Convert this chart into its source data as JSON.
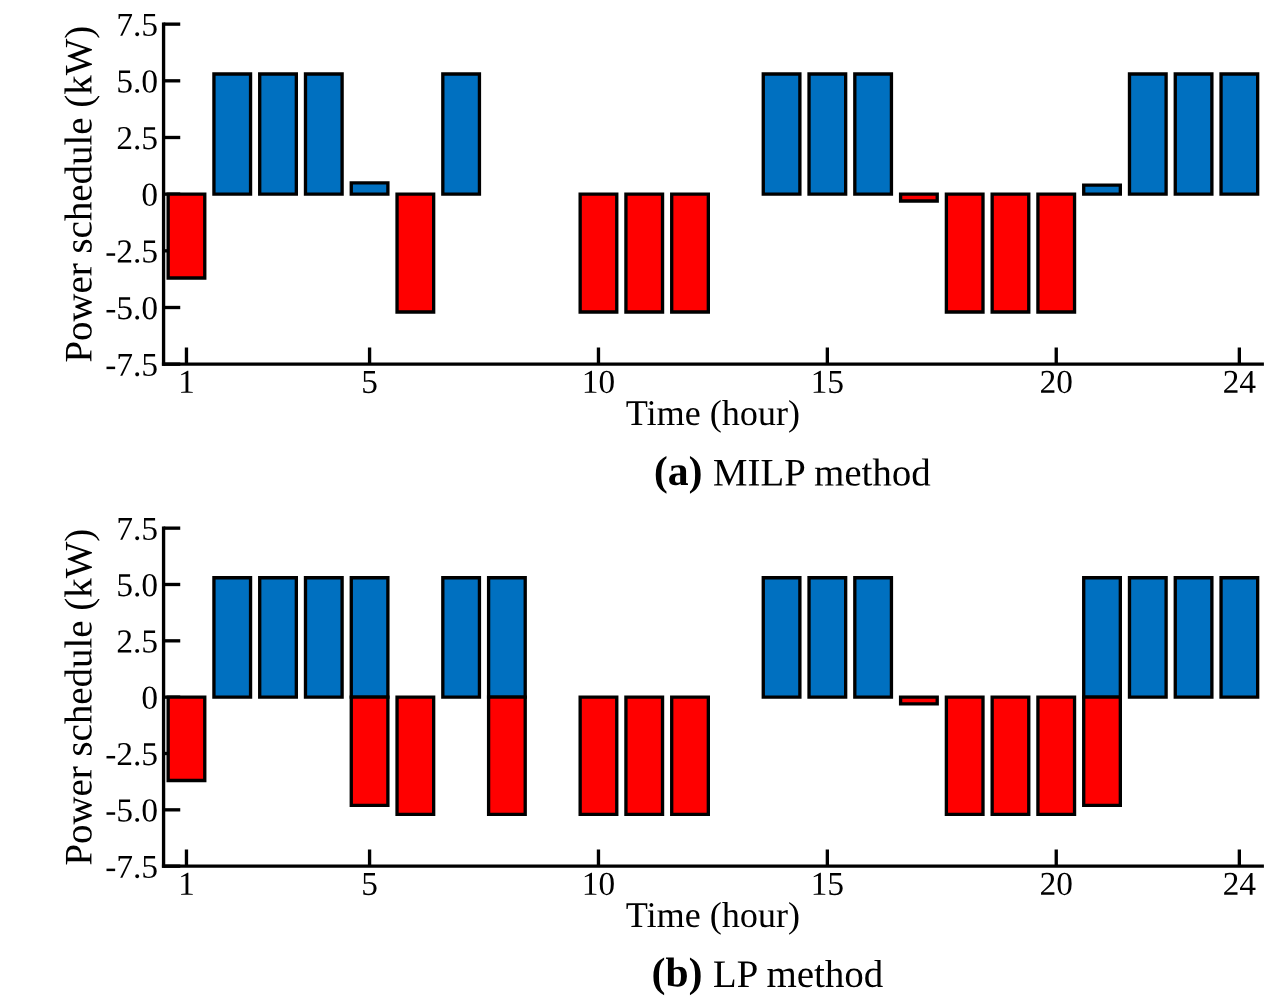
{
  "chart_data": [
    {
      "type": "bar",
      "xlabel": "Time (hour)",
      "ylabel": "Power schedule (kW)",
      "annotations": [
        "(a) MILP method"
      ],
      "x": [
        1,
        2,
        3,
        4,
        5,
        6,
        7,
        8,
        9,
        10,
        11,
        12,
        13,
        14,
        15,
        16,
        17,
        18,
        19,
        20,
        21,
        22,
        23,
        24
      ],
      "series": [
        {
          "color": "#0070c0",
          "values": [
            null,
            5.3,
            5.3,
            5.3,
            0.5,
            null,
            5.3,
            null,
            null,
            null,
            null,
            null,
            null,
            5.3,
            5.3,
            5.3,
            null,
            null,
            null,
            null,
            0.4,
            5.3,
            5.3,
            5.3
          ]
        },
        {
          "color": "#ff0000",
          "values": [
            -3.7,
            null,
            null,
            null,
            null,
            -5.2,
            null,
            null,
            null,
            -5.2,
            -5.2,
            -5.2,
            null,
            null,
            null,
            null,
            -0.3,
            -5.2,
            -5.2,
            -5.2,
            null,
            null,
            null,
            null
          ]
        }
      ],
      "xlim": [
        0.5,
        24.5
      ],
      "xticks": [
        1,
        5,
        10,
        15,
        20,
        24
      ],
      "ylim": [
        -7.5,
        7.5
      ],
      "yticks": [
        {
          "value": -7.5,
          "label": "-7.5"
        },
        {
          "value": -5,
          "label": "-5.0"
        },
        {
          "value": -2.5,
          "label": "-2.5"
        },
        {
          "value": 0,
          "label": "0"
        },
        {
          "value": 2.5,
          "label": "2.5"
        },
        {
          "value": 5,
          "label": "5.0"
        },
        {
          "value": 7.5,
          "label": "7.5"
        }
      ],
      "grid": false,
      "legend": false
    },
    {
      "type": "bar",
      "xlabel": "Time (hour)",
      "ylabel": "Power schedule (kW)",
      "annotations": [
        "(b) LP method"
      ],
      "x": [
        1,
        2,
        3,
        4,
        5,
        6,
        7,
        8,
        9,
        10,
        11,
        12,
        13,
        14,
        15,
        16,
        17,
        18,
        19,
        20,
        21,
        22,
        23,
        24
      ],
      "series": [
        {
          "color": "#0070c0",
          "values": [
            null,
            5.3,
            5.3,
            5.3,
            5.3,
            null,
            5.3,
            5.3,
            null,
            null,
            null,
            null,
            null,
            5.3,
            5.3,
            5.3,
            null,
            null,
            null,
            null,
            5.3,
            5.3,
            5.3,
            5.3
          ]
        },
        {
          "color": "#ff0000",
          "values": [
            -3.7,
            null,
            null,
            null,
            -4.8,
            -5.2,
            null,
            -5.2,
            null,
            -5.2,
            -5.2,
            -5.2,
            null,
            null,
            null,
            null,
            -0.3,
            -5.2,
            -5.2,
            -5.2,
            -4.8,
            null,
            null,
            null
          ]
        }
      ],
      "xlim": [
        0.5,
        24.5
      ],
      "xticks": [
        1,
        5,
        10,
        15,
        20,
        24
      ],
      "ylim": [
        -7.5,
        7.5
      ],
      "yticks": [
        {
          "value": -7.5,
          "label": "-7.5"
        },
        {
          "value": -5,
          "label": "-5.0"
        },
        {
          "value": -2.5,
          "label": "-2.5"
        },
        {
          "value": 0,
          "label": "0"
        },
        {
          "value": 2.5,
          "label": "2.5"
        },
        {
          "value": 5,
          "label": "5.0"
        },
        {
          "value": 7.5,
          "label": "7.5"
        }
      ],
      "grid": false,
      "legend": false
    }
  ]
}
